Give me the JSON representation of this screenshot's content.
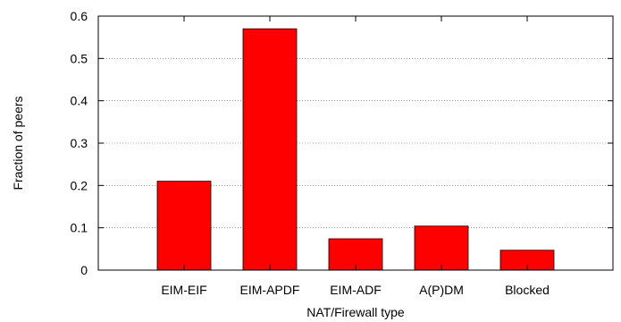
{
  "chart_data": {
    "type": "bar",
    "title": "",
    "xlabel": "NAT/Firewall type",
    "ylabel": "Fraction of peers",
    "categories": [
      "EIM-EIF",
      "EIM-APDF",
      "EIM-ADF",
      "A(P)DM",
      "Blocked"
    ],
    "values": [
      0.21,
      0.57,
      0.074,
      0.104,
      0.047
    ],
    "ylim": [
      0,
      0.6
    ],
    "yticks": [
      "0",
      "0.1",
      "0.2",
      "0.3",
      "0.4",
      "0.5",
      "0.6"
    ],
    "grid": true,
    "bar_color": "#ff0000",
    "legend": "none"
  }
}
